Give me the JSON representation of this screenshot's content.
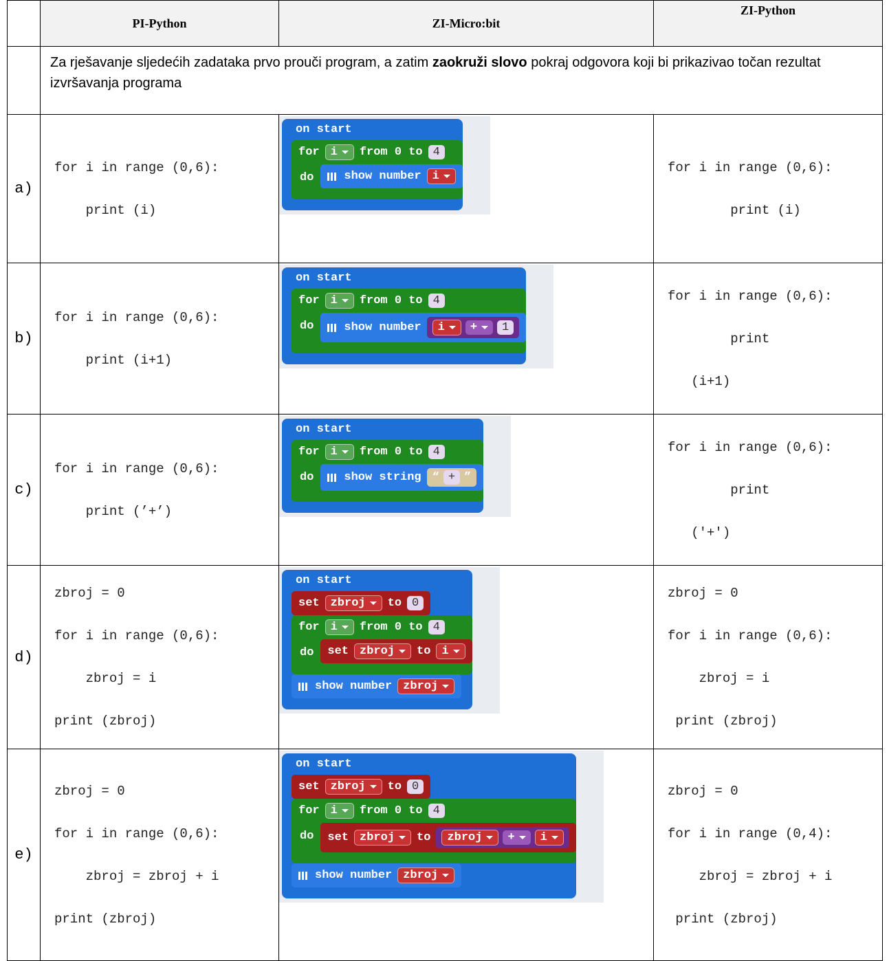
{
  "table": {
    "headers": [
      "PI-Python",
      "ZI-Micro:bit",
      "ZI-Python"
    ],
    "instruction": {
      "before": "Za rješavanje sljedećih zadataka prvo prouči program, a zatim ",
      "bold": "zaokruži slovo",
      "after": " pokraj odgovora koji bi prikazivao  točan rezultat izvršavanja programa"
    },
    "rows": [
      {
        "label": "a)",
        "pi": [
          "for i in range (0,6):",
          "    print (i)"
        ],
        "blocks": {
          "hat": "on start",
          "body": [
            {
              "kind": "loop",
              "head": [
                {
                  "t": "kw",
                  "v": "for"
                },
                {
                  "t": "var",
                  "v": "i"
                },
                {
                  "t": "kw",
                  "v": "from 0 to"
                },
                {
                  "t": "num",
                  "v": "4"
                }
              ],
              "do": "do",
              "body": [
                {
                  "kind": "basic",
                  "parts": [
                    {
                      "t": "kw",
                      "v": "show number"
                    },
                    {
                      "t": "var",
                      "v": "i"
                    }
                  ]
                }
              ]
            }
          ]
        },
        "zi": [
          "for i in range (0,6):",
          "        print (i)"
        ]
      },
      {
        "label": "b)",
        "pi": [
          "for i in range (0,6):",
          "    print (i+1)"
        ],
        "blocks": {
          "hat": "on start",
          "body": [
            {
              "kind": "loop",
              "head": [
                {
                  "t": "kw",
                  "v": "for"
                },
                {
                  "t": "var",
                  "v": "i"
                },
                {
                  "t": "kw",
                  "v": "from 0 to"
                },
                {
                  "t": "num",
                  "v": "4"
                }
              ],
              "do": "do",
              "body": [
                {
                  "kind": "basic",
                  "parts": [
                    {
                      "t": "kw",
                      "v": "show number"
                    },
                    {
                      "t": "expr",
                      "parts": [
                        {
                          "t": "var",
                          "v": "i"
                        },
                        {
                          "t": "op",
                          "v": "+"
                        },
                        {
                          "t": "num",
                          "v": "1"
                        }
                      ]
                    }
                  ]
                }
              ]
            }
          ]
        },
        "zi": [
          "for i in range (0,6):",
          "        print",
          "   (i+1)"
        ]
      },
      {
        "label": "c)",
        "pi": [
          "for i in range (0,6):",
          "    print (’+’)"
        ],
        "blocks": {
          "hat": "on start",
          "body": [
            {
              "kind": "loop",
              "head": [
                {
                  "t": "kw",
                  "v": "for"
                },
                {
                  "t": "var",
                  "v": "i"
                },
                {
                  "t": "kw",
                  "v": "from 0 to"
                },
                {
                  "t": "num",
                  "v": "4"
                }
              ],
              "do": "do",
              "body": [
                {
                  "kind": "basic",
                  "parts": [
                    {
                      "t": "kw",
                      "v": "show string"
                    },
                    {
                      "t": "str",
                      "parts": [
                        {
                          "t": "kw",
                          "v": "“"
                        },
                        {
                          "t": "num",
                          "v": "+"
                        },
                        {
                          "t": "kw",
                          "v": "”"
                        }
                      ]
                    }
                  ]
                }
              ]
            }
          ]
        },
        "zi": [
          "for i in range (0,6):",
          "        print",
          "   ('+')"
        ]
      },
      {
        "label": "d)",
        "pi": [
          "zbroj = 0",
          "for i in range (0,6):",
          "    zbroj = i",
          "print (zbroj)"
        ],
        "blocks": {
          "hat": "on start",
          "body": [
            {
              "kind": "set",
              "parts": [
                {
                  "t": "kw",
                  "v": "set"
                },
                {
                  "t": "var",
                  "v": "zbroj"
                },
                {
                  "t": "kw",
                  "v": "to"
                },
                {
                  "t": "num",
                  "v": "0"
                }
              ]
            },
            {
              "kind": "loop",
              "head": [
                {
                  "t": "kw",
                  "v": "for"
                },
                {
                  "t": "var",
                  "v": "i"
                },
                {
                  "t": "kw",
                  "v": "from 0 to"
                },
                {
                  "t": "num",
                  "v": "4"
                }
              ],
              "do": "do",
              "body": [
                {
                  "kind": "set",
                  "parts": [
                    {
                      "t": "kw",
                      "v": "set"
                    },
                    {
                      "t": "var",
                      "v": "zbroj"
                    },
                    {
                      "t": "kw",
                      "v": "to"
                    },
                    {
                      "t": "var",
                      "v": "i"
                    }
                  ]
                }
              ]
            },
            {
              "kind": "basic",
              "parts": [
                {
                  "t": "kw",
                  "v": "show number"
                },
                {
                  "t": "var",
                  "v": "zbroj"
                }
              ]
            }
          ]
        },
        "zi": [
          "zbroj = 0",
          "for i in range (0,6):",
          "    zbroj = i",
          " print (zbroj)"
        ]
      },
      {
        "label": "e)",
        "pi": [
          "zbroj = 0",
          "for i in range (0,6):",
          "    zbroj = zbroj + i",
          "print (zbroj)"
        ],
        "blocks": {
          "hat": "on start",
          "body": [
            {
              "kind": "set",
              "parts": [
                {
                  "t": "kw",
                  "v": "set"
                },
                {
                  "t": "var",
                  "v": "zbroj"
                },
                {
                  "t": "kw",
                  "v": "to"
                },
                {
                  "t": "num",
                  "v": "0"
                }
              ]
            },
            {
              "kind": "loop",
              "head": [
                {
                  "t": "kw",
                  "v": "for"
                },
                {
                  "t": "var",
                  "v": "i"
                },
                {
                  "t": "kw",
                  "v": "from 0 to"
                },
                {
                  "t": "num",
                  "v": "4"
                }
              ],
              "do": "do",
              "body": [
                {
                  "kind": "set",
                  "parts": [
                    {
                      "t": "kw",
                      "v": "set"
                    },
                    {
                      "t": "var",
                      "v": "zbroj"
                    },
                    {
                      "t": "kw",
                      "v": "to"
                    },
                    {
                      "t": "expr",
                      "parts": [
                        {
                          "t": "var",
                          "v": "zbroj"
                        },
                        {
                          "t": "op",
                          "v": "+"
                        },
                        {
                          "t": "var",
                          "v": "i"
                        }
                      ]
                    }
                  ]
                }
              ]
            },
            {
              "kind": "basic",
              "parts": [
                {
                  "t": "kw",
                  "v": "show number"
                },
                {
                  "t": "var",
                  "v": "zbroj"
                }
              ]
            }
          ]
        },
        "zi": [
          "zbroj = 0",
          "for i in range (0,4):",
          "    zbroj = zbroj + i",
          " print (zbroj)"
        ]
      }
    ]
  }
}
